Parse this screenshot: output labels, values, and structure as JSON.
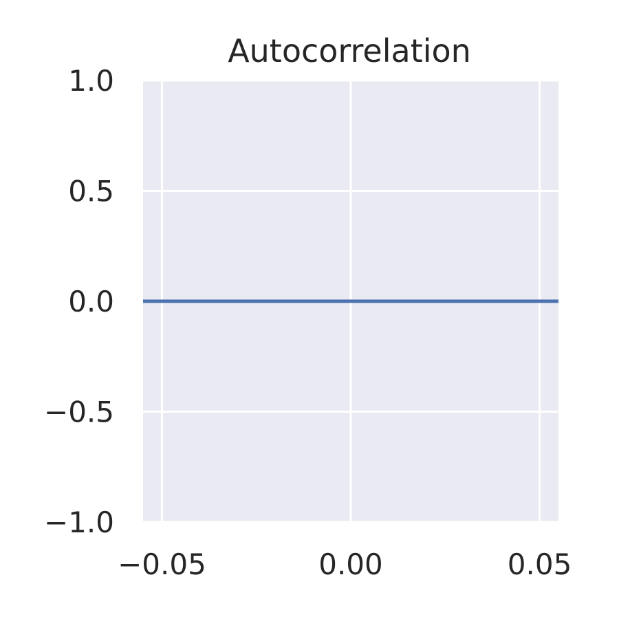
{
  "chart_data": {
    "type": "line",
    "title": "Autocorrelation",
    "xlabel": "",
    "ylabel": "",
    "xlim": [
      -0.055,
      0.055
    ],
    "ylim": [
      -1.0,
      1.0
    ],
    "grid": true,
    "x_ticks": [
      -0.05,
      0.0,
      0.05
    ],
    "x_tick_labels": [
      "−0.05",
      "0.00",
      "0.05"
    ],
    "y_ticks": [
      1.0,
      0.5,
      0.0,
      -0.5,
      -1.0
    ],
    "y_tick_labels": [
      "1.0",
      "0.5",
      "0.0",
      "−0.5",
      "−1.0"
    ],
    "series": [
      {
        "color": "#4c72b0",
        "x": [
          -0.055,
          0.055
        ],
        "y": [
          0.0,
          0.0
        ]
      }
    ],
    "colors": {
      "plot_background": "#eaeaf2",
      "grid": "#ffffff",
      "text": "#262626"
    }
  }
}
